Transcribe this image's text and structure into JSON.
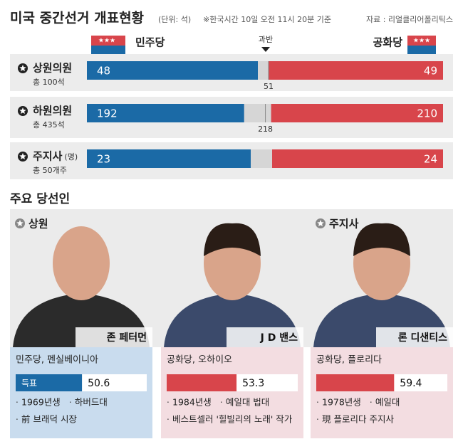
{
  "header": {
    "title": "미국 중간선거 개표현황",
    "unit": "(단위: 석)",
    "note": "※한국시간 10일 오전 11시 20분 기준",
    "source": "자료 : 리얼클리어폴리틱스"
  },
  "parties": {
    "dem": "민주당",
    "rep": "공화당",
    "majority": "과반",
    "dem_color": "#1b6aa6",
    "rep_color": "#d8454b"
  },
  "rows": [
    {
      "label": "상원의원",
      "total": {
        "value": 100,
        "label": "총 100석"
      },
      "dem": 48,
      "rep": 49,
      "majority": 51
    },
    {
      "label": "하원의원",
      "total": {
        "value": 435,
        "label": "총 435석"
      },
      "dem": 192,
      "rep": 210,
      "majority": 218
    },
    {
      "label": "주지사",
      "label_note": "(명)",
      "total": {
        "value": 50,
        "label": "총 50개주"
      },
      "dem": 23,
      "rep": 24
    }
  ],
  "winners": {
    "title": "주요 당선인",
    "cards": [
      {
        "office": "상원",
        "name": "존 페터먼",
        "party_region": "민주당, 펜실베이니아",
        "vote_label": "득표",
        "vote": 50.6,
        "facts": [
          [
            "1969년생",
            "하버드대"
          ],
          [
            "前 브래덕 시장"
          ]
        ]
      },
      {
        "name": "J D 밴스",
        "party_region": "공화당, 오하이오",
        "vote": 53.3,
        "facts": [
          [
            "1984년생",
            "예일대 법대"
          ],
          [
            "베스트셀러 '힐빌리의 노래' 작가"
          ]
        ]
      },
      {
        "office": "주지사",
        "name": "론 디샌티스",
        "party_region": "공화당, 플로리다",
        "vote": 59.4,
        "facts": [
          [
            "1978년생",
            "예일대"
          ],
          [
            "現 플로리다 주지사"
          ]
        ]
      }
    ]
  }
}
